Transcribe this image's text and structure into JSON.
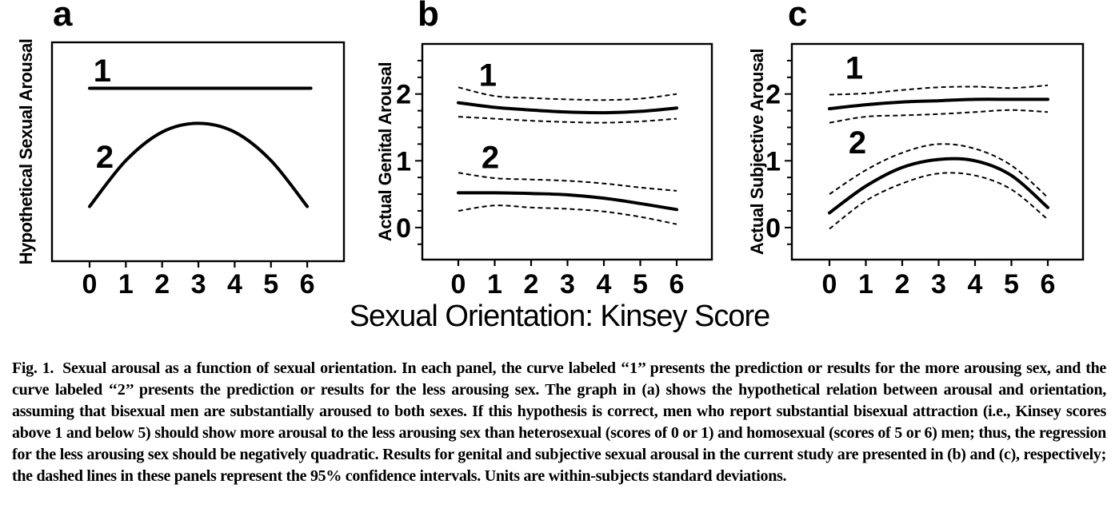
{
  "figure": {
    "x_axis_label": "Sexual Orientation: Kinsey Score"
  },
  "colors": {
    "foreground": "#000000",
    "background": "#ffffff"
  },
  "chart_data": [
    {
      "type": "line",
      "panel_label": "a",
      "ylabel": "Hypothetical Sexual Arousal",
      "xlabel_shared": "Sexual Orientation: Kinsey Score",
      "x_ticks": [
        0,
        1,
        2,
        3,
        4,
        5,
        6
      ],
      "y_axis": null,
      "y_units": "relative (no scale shown)",
      "series": [
        {
          "name": "curve-1-more-arousing-sex",
          "label": "1",
          "style": "solid",
          "x": [
            0,
            6.1
          ],
          "y": [
            0.79,
            0.79
          ],
          "label_at": [
            0.35,
            0.872
          ]
        },
        {
          "name": "curve-2-less-arousing-sex",
          "label": "2",
          "style": "solid",
          "x": [
            0,
            1,
            2,
            3,
            4,
            5,
            6
          ],
          "y": [
            0.25,
            0.46,
            0.59,
            0.63,
            0.59,
            0.46,
            0.25
          ],
          "label_at": [
            0.42,
            0.478
          ]
        }
      ]
    },
    {
      "type": "line",
      "panel_label": "b",
      "ylabel": "Actual Genital Arousal",
      "xlabel_shared": "Sexual Orientation: Kinsey Score",
      "x_ticks": [
        0,
        1,
        2,
        3,
        4,
        5,
        6
      ],
      "y_axis": {
        "major_ticks": [
          0,
          1,
          2
        ],
        "minor_step": 0.25,
        "minor_min": -0.25,
        "minor_max": 2.5
      },
      "series": [
        {
          "name": "ci-1-upper",
          "style": "dashed",
          "x": [
            0,
            1,
            2,
            3,
            4,
            5,
            6
          ],
          "y": [
            2.1,
            1.97,
            1.94,
            1.92,
            1.91,
            1.93,
            2.0
          ]
        },
        {
          "name": "ci-1-lower",
          "style": "dashed",
          "x": [
            0,
            1,
            2,
            3,
            4,
            5,
            6
          ],
          "y": [
            1.66,
            1.63,
            1.6,
            1.58,
            1.57,
            1.59,
            1.63
          ]
        },
        {
          "name": "fit-1-more-arousing-sex",
          "label": "1",
          "style": "solid",
          "x": [
            0,
            1,
            2,
            3,
            4,
            5,
            6
          ],
          "y": [
            1.87,
            1.8,
            1.76,
            1.73,
            1.72,
            1.74,
            1.79
          ],
          "label_at": [
            0.81,
            2.29
          ]
        },
        {
          "name": "ci-2-upper",
          "style": "dashed",
          "x": [
            0,
            1,
            2,
            3,
            4,
            5,
            6
          ],
          "y": [
            0.82,
            0.74,
            0.72,
            0.7,
            0.66,
            0.6,
            0.55
          ]
        },
        {
          "name": "ci-2-lower",
          "style": "dashed",
          "x": [
            0,
            1,
            2,
            3,
            4,
            5,
            6
          ],
          "y": [
            0.25,
            0.33,
            0.3,
            0.28,
            0.24,
            0.16,
            0.05
          ]
        },
        {
          "name": "fit-2-less-arousing-sex",
          "label": "2",
          "style": "solid",
          "x": [
            0,
            1,
            2,
            3,
            4,
            5,
            6
          ],
          "y": [
            0.52,
            0.52,
            0.51,
            0.49,
            0.44,
            0.36,
            0.27
          ],
          "label_at": [
            0.88,
            1.06
          ]
        }
      ]
    },
    {
      "type": "line",
      "panel_label": "c",
      "ylabel": "Actual Subjective Arousal",
      "xlabel_shared": "Sexual Orientation: Kinsey Score",
      "x_ticks": [
        0,
        1,
        2,
        3,
        4,
        5,
        6
      ],
      "y_axis": {
        "major_ticks": [
          0,
          1,
          2
        ],
        "minor_step": 0.25,
        "minor_min": -0.25,
        "minor_max": 2.5
      },
      "series": [
        {
          "name": "ci-1-upper",
          "style": "dashed",
          "x": [
            0,
            1,
            2,
            3,
            4,
            5,
            6
          ],
          "y": [
            1.99,
            2.01,
            2.06,
            2.1,
            2.11,
            2.09,
            2.13
          ]
        },
        {
          "name": "ci-1-lower",
          "style": "dashed",
          "x": [
            0,
            1,
            2,
            3,
            4,
            5,
            6
          ],
          "y": [
            1.57,
            1.66,
            1.68,
            1.7,
            1.73,
            1.76,
            1.73
          ]
        },
        {
          "name": "fit-1-more-arousing-sex",
          "label": "1",
          "style": "solid",
          "x": [
            0,
            1,
            2,
            3,
            4,
            5,
            6
          ],
          "y": [
            1.78,
            1.84,
            1.88,
            1.9,
            1.92,
            1.92,
            1.92
          ],
          "label_at": [
            0.68,
            2.4
          ]
        },
        {
          "name": "ci-2-upper",
          "style": "dashed",
          "x": [
            0,
            1,
            2,
            3,
            4,
            5,
            6
          ],
          "y": [
            0.5,
            0.86,
            1.12,
            1.25,
            1.18,
            0.93,
            0.45
          ]
        },
        {
          "name": "ci-2-lower",
          "style": "dashed",
          "x": [
            0,
            1,
            2,
            3,
            4,
            5,
            6
          ],
          "y": [
            -0.02,
            0.4,
            0.66,
            0.81,
            0.78,
            0.57,
            0.12
          ]
        },
        {
          "name": "fit-2-less-arousing-sex",
          "label": "2",
          "style": "solid",
          "x": [
            0,
            1,
            2,
            3,
            4,
            5,
            6
          ],
          "y": [
            0.22,
            0.62,
            0.9,
            1.02,
            1.0,
            0.78,
            0.3
          ],
          "label_at": [
            0.77,
            1.28
          ]
        }
      ]
    }
  ],
  "caption": {
    "label": "Fig. 1.",
    "text": "Sexual arousal as a function of sexual orientation. In each panel, the curve labeled ‘‘1’’ presents the prediction or results for the more arousing sex, and the curve labeled ‘‘2’’ presents the prediction or results for the less arousing sex. The graph in (a) shows the hypothetical relation between arousal and orientation, assuming that bisexual men are substantially aroused to both sexes. If this hypothesis is correct, men who report substantial bisexual attraction (i.e., Kinsey scores above 1 and below 5) should show more arousal to the less arousing sex than heterosexual (scores of 0 or 1) and homosexual (scores of 5 or 6) men; thus, the regression for the less arousing sex should be negatively quadratic. Results for genital and subjective sexual arousal in the current study are presented in (b) and (c), respectively; the dashed lines in these panels represent the 95% confidence intervals. Units are within-subjects standard deviations."
  }
}
